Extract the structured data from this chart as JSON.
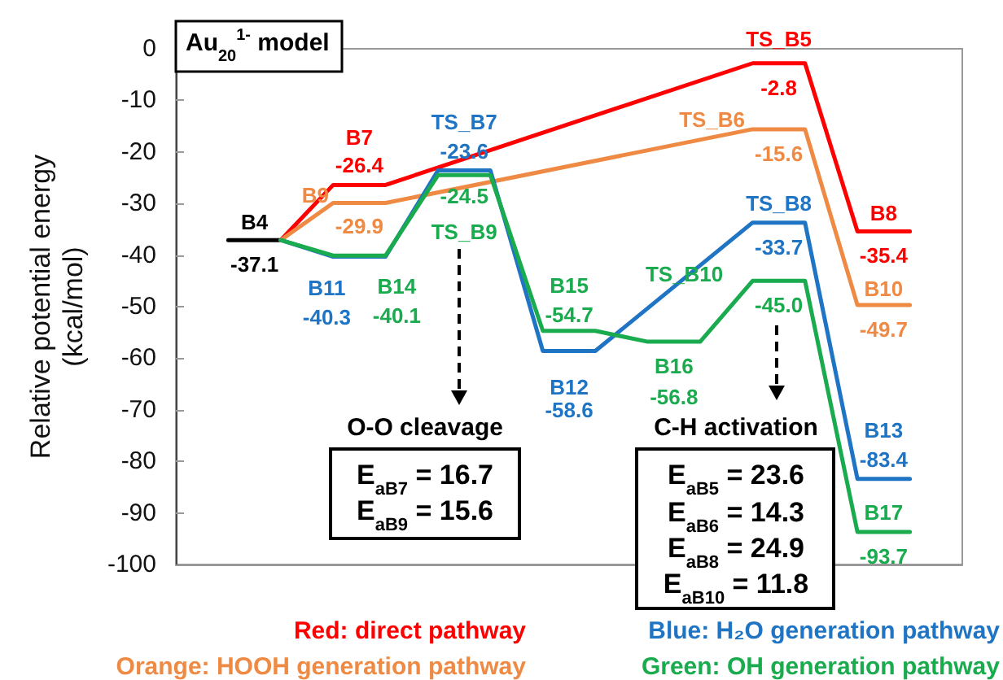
{
  "chart_data": {
    "type": "line",
    "title": "Au$_{20}$$^{1-}$ model",
    "ylabel": "Relative potential energy (kcal/mol)",
    "categories": [
      null,
      null,
      null,
      null,
      null,
      null,
      null,
      null,
      null,
      null,
      null,
      null,
      null,
      null
    ],
    "ylim": [
      -100,
      0
    ],
    "yticks": [
      0,
      -10,
      -20,
      -30,
      -40,
      -50,
      -60,
      -70,
      -80,
      -90,
      -100
    ],
    "tick_labels": "y",
    "grid": false,
    "marker": "none",
    "series": [
      {
        "color": "#000000",
        "values": [
          -37.1,
          -37.1,
          null,
          null,
          null,
          null,
          null,
          null,
          null,
          null,
          null,
          null,
          null,
          null
        ],
        "value_labels": [
          "-37.1",
          null,
          null,
          null,
          null,
          null,
          null,
          null,
          null,
          null,
          null,
          null,
          null,
          null
        ]
      },
      {
        "name": "Red: direct pathway",
        "color": "#ff0000",
        "values": [
          null,
          -37.1,
          -26.4,
          -26.4,
          null,
          null,
          null,
          null,
          null,
          null,
          -2.8,
          -2.8,
          -35.4,
          -35.4
        ],
        "value_labels": [
          null,
          null,
          "-26.4",
          null,
          null,
          null,
          null,
          null,
          null,
          null,
          "-2.8",
          null,
          "-35.4",
          null
        ]
      },
      {
        "name": "Orange: HOOH generation pathway",
        "color": "#ee8a44",
        "values": [
          null,
          -37.1,
          -29.9,
          -29.9,
          null,
          null,
          null,
          null,
          null,
          null,
          -15.6,
          -15.6,
          -49.7,
          -49.7
        ],
        "value_labels": [
          null,
          null,
          "-29.9",
          null,
          null,
          null,
          null,
          null,
          null,
          null,
          "-15.6",
          null,
          "-49.7",
          null
        ]
      },
      {
        "name": "Blue: H₂O generation pathway",
        "color": "#1f74c4",
        "values": [
          null,
          -37.1,
          -40.3,
          -40.3,
          -23.6,
          -23.6,
          -58.6,
          -58.6,
          null,
          null,
          -33.7,
          -33.7,
          -83.4,
          -83.4
        ],
        "value_labels": [
          null,
          null,
          "-40.3",
          null,
          "-23.6",
          null,
          "-58.6",
          null,
          null,
          null,
          "-33.7",
          null,
          "-83.4",
          null
        ]
      },
      {
        "name": "Green: OH generation pathway",
        "color": "#1aab4f",
        "values": [
          null,
          -37.1,
          -40.1,
          -40.1,
          -24.5,
          -24.5,
          -54.7,
          -54.7,
          -56.8,
          -56.8,
          -45.0,
          -45.0,
          -93.7,
          -93.7
        ],
        "value_labels": [
          null,
          null,
          "-40.1",
          null,
          "-24.5",
          null,
          "-54.7",
          null,
          "-56.8",
          null,
          "-45.0",
          null,
          "-93.7",
          null
        ]
      }
    ],
    "annotations": [
      {
        "text": "B4",
        "y": -37.1
      },
      {
        "text": "B7",
        "y": -26.4
      },
      {
        "text": "B9",
        "y": -29.9
      },
      {
        "text": "B11",
        "y": -40.3
      },
      {
        "text": "B14",
        "y": -40.1
      },
      {
        "text": "TS_B7",
        "y": -23.6
      },
      {
        "text": "TS_B9",
        "y": -24.5
      },
      {
        "text": "B15",
        "y": -54.7
      },
      {
        "text": "B12",
        "y": -58.6
      },
      {
        "text": "B16",
        "y": -56.8
      },
      {
        "text": "TS_B5",
        "y": -2.8
      },
      {
        "text": "TS_B6",
        "y": -15.6
      },
      {
        "text": "TS_B8",
        "y": -33.7
      },
      {
        "text": "TS_B10",
        "y": -45.0
      },
      {
        "text": "B8",
        "y": -35.4
      },
      {
        "text": "B10",
        "y": -49.7
      },
      {
        "text": "B13",
        "y": -83.4
      },
      {
        "text": "B17",
        "y": -93.7
      },
      "O-O cleavage",
      "E$_{aB7}$ = 16.7",
      "E$_{aB9}$ = 15.6",
      "C-H activation",
      "E$_{aB5}$ = 23.6",
      "E$_{aB6}$ = 14.3",
      "E$_{aB8}$ = 24.9",
      "E$_{aB10}$ = 11.8"
    ]
  }
}
